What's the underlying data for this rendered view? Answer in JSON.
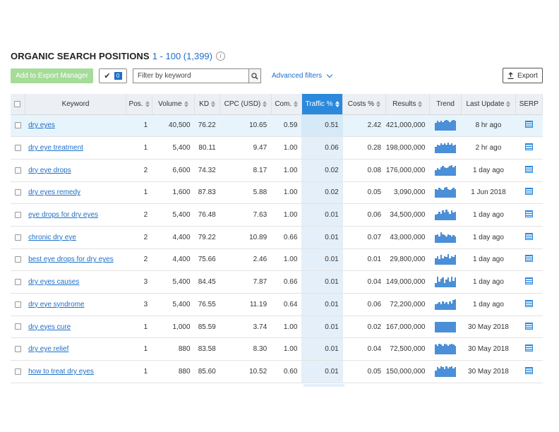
{
  "header": {
    "title": "ORGANIC SEARCH POSITIONS",
    "range": "1 - 100 (1,399)",
    "info_glyph": "i"
  },
  "toolbar": {
    "export_manager_label": "Add to Export Manager",
    "selected_count": "0",
    "filter_placeholder": "Filter by keyword",
    "advanced_filters_label": "Advanced filters",
    "export_label": "Export"
  },
  "columns": {
    "keyword": "Keyword",
    "pos": "Pos.",
    "volume": "Volume",
    "kd": "KD",
    "cpc": "CPC (USD)",
    "com": "Com.",
    "traffic": "Traffic %",
    "costs": "Costs %",
    "results": "Results",
    "trend": "Trend",
    "last_update": "Last Update",
    "serp": "SERP"
  },
  "rows": [
    {
      "keyword": "dry eyes",
      "pos": "1",
      "volume": "40,500",
      "kd": "76.22",
      "cpc": "10.65",
      "com": "0.59",
      "traffic": "0.51",
      "costs": "2.42",
      "results": "421,000,000",
      "last_update": "8 hr ago",
      "trend": [
        0.7,
        0.9,
        0.8,
        0.9,
        0.8,
        0.9,
        1.0,
        0.9,
        0.8,
        0.9,
        1.0,
        0.9
      ]
    },
    {
      "keyword": "dry eye treatment",
      "pos": "1",
      "volume": "5,400",
      "kd": "80.11",
      "cpc": "9.47",
      "com": "1.00",
      "traffic": "0.06",
      "costs": "0.28",
      "results": "198,000,000",
      "last_update": "2 hr ago",
      "trend": [
        0.6,
        0.8,
        0.7,
        0.9,
        0.8,
        0.9,
        0.8,
        1.0,
        0.8,
        0.9,
        0.7,
        0.8
      ]
    },
    {
      "keyword": "dry eye drops",
      "pos": "2",
      "volume": "6,600",
      "kd": "74.32",
      "cpc": "8.17",
      "com": "1.00",
      "traffic": "0.02",
      "costs": "0.08",
      "results": "176,000,000",
      "last_update": "1 day ago",
      "trend": [
        0.5,
        0.7,
        0.6,
        0.8,
        0.9,
        0.8,
        0.7,
        0.8,
        0.9,
        1.0,
        0.8,
        0.9
      ]
    },
    {
      "keyword": "dry eyes remedy",
      "pos": "1",
      "volume": "1,600",
      "kd": "87.83",
      "cpc": "5.88",
      "com": "1.00",
      "traffic": "0.02",
      "costs": "0.05",
      "results": "3,090,000",
      "last_update": "1 Jun 2018",
      "trend": [
        0.8,
        0.7,
        0.9,
        0.8,
        0.7,
        0.9,
        1.0,
        0.8,
        0.7,
        0.8,
        0.9,
        0.8
      ]
    },
    {
      "keyword": "eye drops for dry eyes",
      "pos": "2",
      "volume": "5,400",
      "kd": "76.48",
      "cpc": "7.63",
      "com": "1.00",
      "traffic": "0.01",
      "costs": "0.06",
      "results": "34,500,000",
      "last_update": "1 day ago",
      "trend": [
        0.5,
        0.6,
        0.8,
        0.6,
        0.9,
        0.7,
        1.0,
        0.8,
        0.6,
        0.9,
        0.7,
        0.8
      ]
    },
    {
      "keyword": "chronic dry eye",
      "pos": "2",
      "volume": "4,400",
      "kd": "79.22",
      "cpc": "10.89",
      "com": "0.66",
      "traffic": "0.01",
      "costs": "0.07",
      "results": "43,000,000",
      "last_update": "1 day ago",
      "trend": [
        0.7,
        0.8,
        0.6,
        1.0,
        0.8,
        0.7,
        0.6,
        0.8,
        0.7,
        0.6,
        0.7,
        0.6
      ]
    },
    {
      "keyword": "best eye drops for dry eyes",
      "pos": "2",
      "volume": "4,400",
      "kd": "75.66",
      "cpc": "2.46",
      "com": "1.00",
      "traffic": "0.01",
      "costs": "0.01",
      "results": "29,800,000",
      "last_update": "1 day ago",
      "trend": [
        0.6,
        0.8,
        0.5,
        0.9,
        0.6,
        0.8,
        0.7,
        1.0,
        0.6,
        0.8,
        0.7,
        0.9
      ]
    },
    {
      "keyword": "dry eyes causes",
      "pos": "3",
      "volume": "5,400",
      "kd": "84.45",
      "cpc": "7.87",
      "com": "0.66",
      "traffic": "0.01",
      "costs": "0.04",
      "results": "149,000,000",
      "last_update": "1 day ago",
      "trend": [
        0.4,
        1.0,
        0.5,
        0.8,
        0.9,
        0.4,
        0.7,
        0.9,
        0.5,
        1.0,
        0.6,
        0.9
      ]
    },
    {
      "keyword": "dry eye syndrome",
      "pos": "3",
      "volume": "5,400",
      "kd": "76.55",
      "cpc": "11.19",
      "com": "0.64",
      "traffic": "0.01",
      "costs": "0.06",
      "results": "72,200,000",
      "last_update": "1 day ago",
      "trend": [
        0.5,
        0.6,
        0.7,
        0.5,
        0.8,
        0.6,
        0.7,
        0.5,
        0.8,
        0.6,
        0.9,
        1.0
      ]
    },
    {
      "keyword": "dry eyes cure",
      "pos": "1",
      "volume": "1,000",
      "kd": "85.59",
      "cpc": "3.74",
      "com": "1.00",
      "traffic": "0.01",
      "costs": "0.02",
      "results": "167,000,000",
      "last_update": "30 May 2018",
      "trend": [
        1.0,
        1.0,
        1.0,
        1.0,
        1.0,
        1.0,
        1.0,
        1.0,
        1.0,
        1.0,
        1.0,
        1.0
      ]
    },
    {
      "keyword": "dry eye relief",
      "pos": "1",
      "volume": "880",
      "kd": "83.58",
      "cpc": "8.30",
      "com": "1.00",
      "traffic": "0.01",
      "costs": "0.04",
      "results": "72,500,000",
      "last_update": "30 May 2018",
      "trend": [
        0.9,
        0.8,
        1.0,
        0.9,
        0.8,
        1.0,
        0.9,
        0.8,
        0.9,
        1.0,
        0.9,
        0.8
      ]
    },
    {
      "keyword": "how to treat dry eyes",
      "pos": "1",
      "volume": "880",
      "kd": "85.60",
      "cpc": "10.52",
      "com": "0.60",
      "traffic": "0.01",
      "costs": "0.05",
      "results": "150,000,000",
      "last_update": "30 May 2018",
      "trend": [
        0.6,
        0.9,
        0.8,
        1.0,
        0.9,
        0.7,
        1.0,
        0.8,
        0.9,
        1.0,
        0.8,
        0.9
      ]
    }
  ],
  "icons": {
    "info": "info-icon",
    "check": "check-icon",
    "search": "magnifier-icon",
    "advanced": "chevron-down-icon",
    "export": "upload-icon",
    "serp": "serp-page-icon"
  },
  "colors": {
    "accent": "#1e6fc9",
    "traffic_header": "#2a89dd",
    "export_manager_bg": "#a5dc98",
    "selected_row": "#e7f4fc",
    "trend_bar": "#4a8fd8"
  }
}
